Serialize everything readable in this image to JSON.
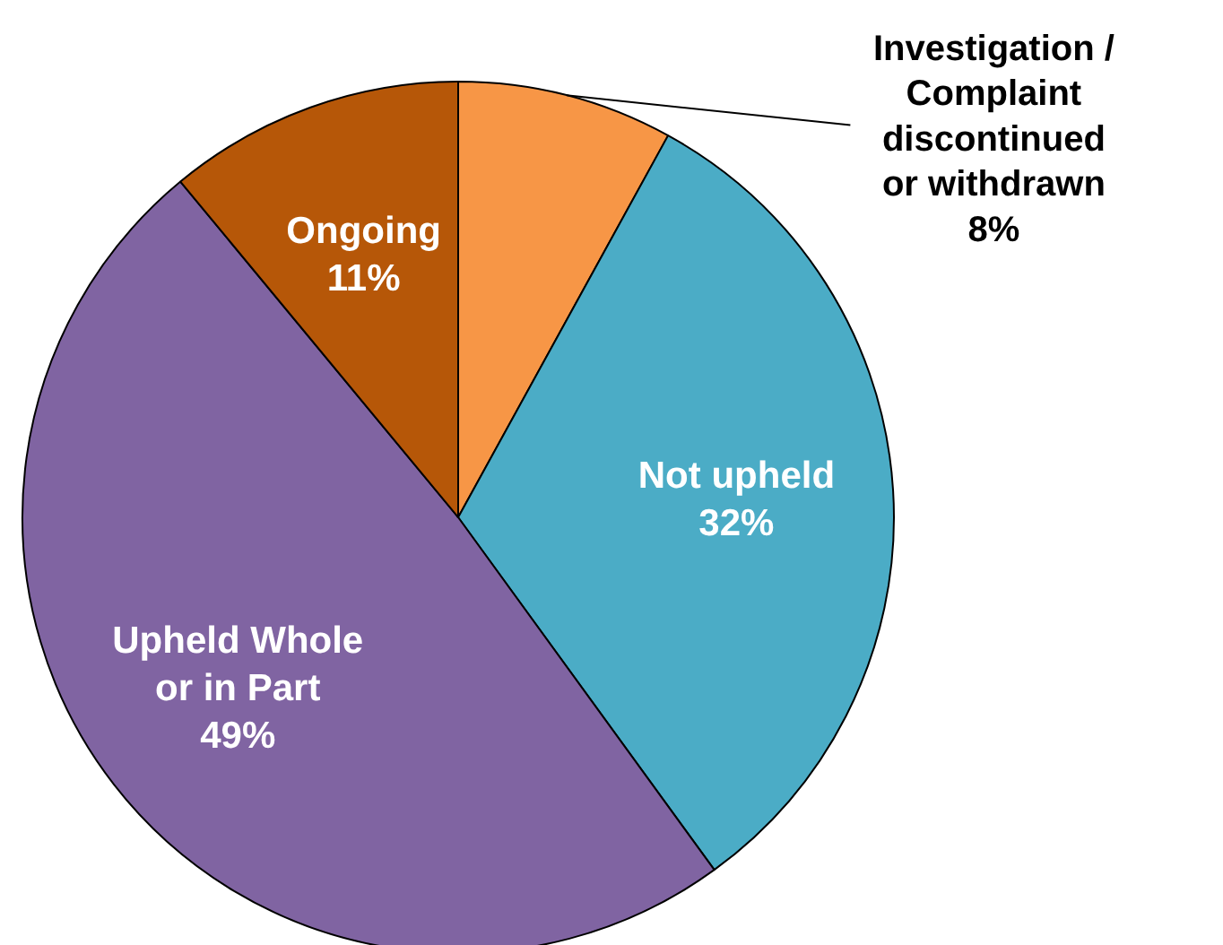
{
  "chart_data": {
    "type": "pie",
    "categories": [
      "Investigation / Complaint discontinued or withdrawn",
      "Not upheld",
      "Upheld Whole or in Part",
      "Ongoing"
    ],
    "values": [
      8,
      32,
      49,
      11
    ],
    "colors": [
      "#f79646",
      "#4bacc6",
      "#8064a2",
      "#b65708"
    ],
    "value_labels": [
      "8%",
      "32%",
      "49%",
      "11%"
    ]
  }
}
